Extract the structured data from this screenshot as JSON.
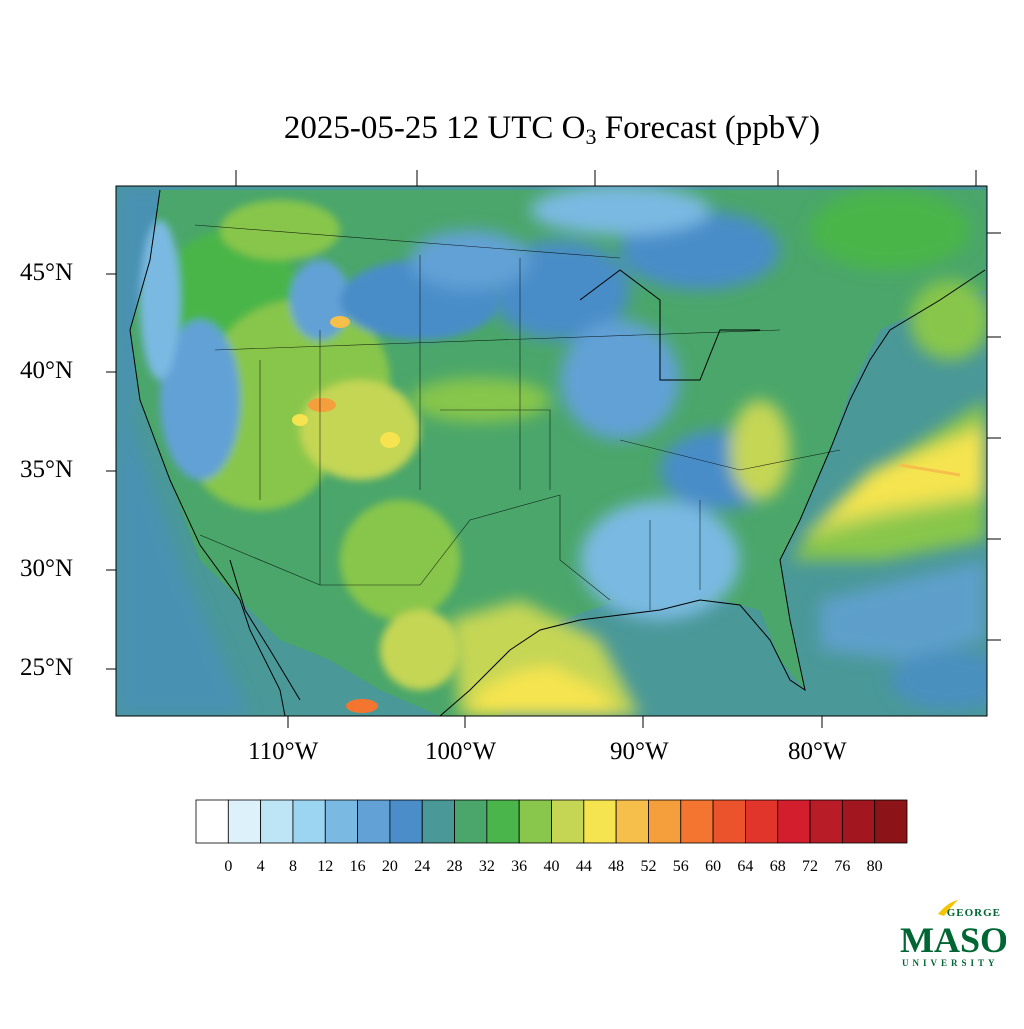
{
  "title": {
    "prefix": "2025-05-25 12 UTC O",
    "subscript": "3",
    "suffix": " Forecast (ppbV)"
  },
  "axes": {
    "lat_labels": [
      "45°N",
      "40°N",
      "35°N",
      "30°N",
      "25°N"
    ],
    "lon_labels": [
      "110°W",
      "100°W",
      "90°W",
      "80°W"
    ]
  },
  "colorbar": {
    "tick_labels": [
      "0",
      "4",
      "8",
      "12",
      "16",
      "20",
      "24",
      "28",
      "32",
      "36",
      "40",
      "44",
      "48",
      "52",
      "56",
      "60",
      "64",
      "68",
      "72",
      "76",
      "80"
    ],
    "colors": [
      "#ffffff",
      "#ddf1fa",
      "#bde5f6",
      "#9bd5f2",
      "#7ab9e2",
      "#62a1d6",
      "#4a8dc8",
      "#4a9898",
      "#4aa66a",
      "#4ab54a",
      "#88c64c",
      "#c5d655",
      "#f5e44f",
      "#f6bf4c",
      "#f59f3c",
      "#f47530",
      "#ea532b",
      "#e1342b",
      "#d21e2d",
      "#b81c27",
      "#a2171f",
      "#8c1418"
    ]
  },
  "logo": {
    "top": "GEORGE",
    "main": "MASON",
    "bottom": "UNIVERSITY",
    "color": "#006633",
    "accent": "#f5c400"
  },
  "colors": {
    "ocean": "#4a9898",
    "land_base": "#4aa66a",
    "boundary": "#000000"
  }
}
